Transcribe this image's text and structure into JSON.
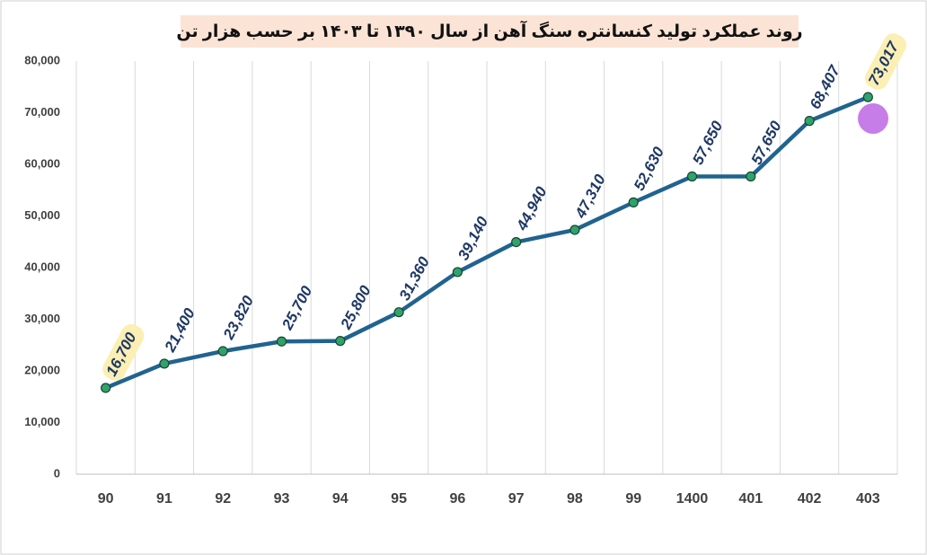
{
  "chart_data": {
    "type": "line",
    "title": "روند عملکرد تولید کنسانتره سنگ آهن از سال ۱۳۹۰ تا ۱۴۰۳ بر حسب هزار تن",
    "categories": [
      "90",
      "91",
      "92",
      "93",
      "94",
      "95",
      "96",
      "97",
      "98",
      "99",
      "1400",
      "401",
      "402",
      "403"
    ],
    "values": [
      16700,
      21400,
      23820,
      25700,
      25800,
      31360,
      39140,
      44940,
      47310,
      52630,
      57650,
      57650,
      68407,
      73017
    ],
    "value_labels": [
      "16,700",
      "21,400",
      "23,820",
      "25,700",
      "25,800",
      "31,360",
      "39,140",
      "44,940",
      "47,310",
      "52,630",
      "57,650",
      "57,650",
      "68,407",
      "73,017"
    ],
    "color": "#20638f",
    "marker_color": "#2ea36b",
    "ylim": [
      0,
      80000
    ],
    "yticks": [
      0,
      {
        "value": 10000,
        "label": "10,000"
      },
      {
        "value": 20000,
        "label": "20,000"
      },
      {
        "value": 30000,
        "label": "30,000"
      },
      {
        "value": 40000,
        "label": "40,000"
      },
      {
        "value": 50000,
        "label": "50,000"
      },
      {
        "value": 60000,
        "label": "60,000"
      },
      {
        "value": 70000,
        "label": "70,000"
      },
      {
        "value": 80000,
        "label": "80,000"
      }
    ],
    "grid": "x"
  }
}
